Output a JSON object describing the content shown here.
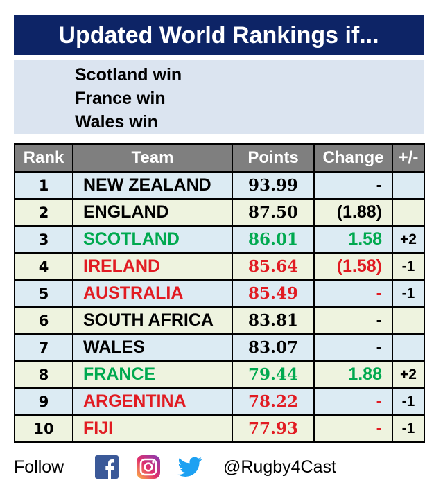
{
  "title": "Updated World Rankings if...",
  "conditions": [
    "Scotland win",
    "France win",
    "Wales win"
  ],
  "headers": {
    "rank": "Rank",
    "team": "Team",
    "points": "Points",
    "change": "Change",
    "movement": "+/-"
  },
  "colors": {
    "title_bg": "#0d2466",
    "up": "#00a94f",
    "down": "#e11b22",
    "same": "#000000",
    "header_bg": "#7f7f7f"
  },
  "rows": [
    {
      "rank": "1",
      "team": "NEW ZEALAND",
      "points": "93.99",
      "change": "-",
      "movement": "",
      "status": "same"
    },
    {
      "rank": "2",
      "team": "ENGLAND",
      "points": "87.50",
      "change": "(1.88)",
      "movement": "",
      "status": "same"
    },
    {
      "rank": "3",
      "team": "SCOTLAND",
      "points": "86.01",
      "change": "1.58",
      "movement": "+2",
      "status": "up"
    },
    {
      "rank": "4",
      "team": "IRELAND",
      "points": "85.64",
      "change": "(1.58)",
      "movement": "-1",
      "status": "down"
    },
    {
      "rank": "5",
      "team": "AUSTRALIA",
      "points": "85.49",
      "change": "-",
      "movement": "-1",
      "status": "down"
    },
    {
      "rank": "6",
      "team": "SOUTH AFRICA",
      "points": "83.81",
      "change": "-",
      "movement": "",
      "status": "same"
    },
    {
      "rank": "7",
      "team": "WALES",
      "points": "83.07",
      "change": "-",
      "movement": "",
      "status": "same"
    },
    {
      "rank": "8",
      "team": "FRANCE",
      "points": "79.44",
      "change": "1.88",
      "movement": "+2",
      "status": "up"
    },
    {
      "rank": "9",
      "team": "ARGENTINA",
      "points": "78.22",
      "change": "-",
      "movement": "-1",
      "status": "down"
    },
    {
      "rank": "10",
      "team": "FIJI",
      "points": "77.93",
      "change": "-",
      "movement": "-1",
      "status": "down"
    }
  ],
  "footer": {
    "follow": "Follow",
    "handle": "@Rugby4Cast",
    "icons": [
      "facebook-icon",
      "instagram-icon",
      "twitter-icon"
    ]
  }
}
